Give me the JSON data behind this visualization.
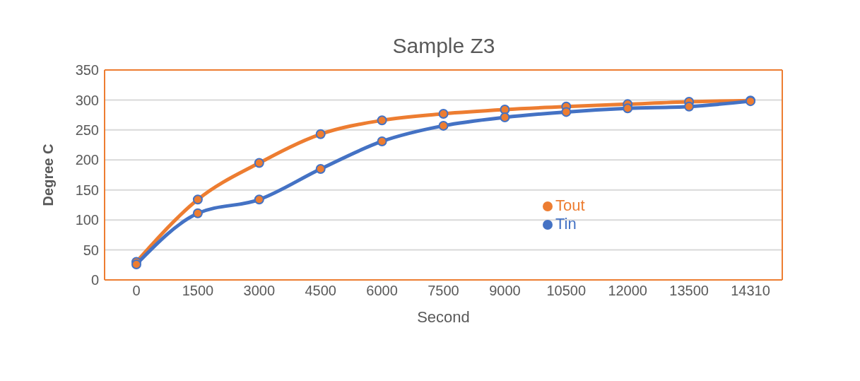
{
  "chart_data": {
    "type": "line",
    "title": "Sample Z3",
    "xlabel": "Second",
    "ylabel": "Degree C",
    "categories": [
      "0",
      "1500",
      "3000",
      "4500",
      "6000",
      "7500",
      "9000",
      "10500",
      "12000",
      "13500",
      "14310"
    ],
    "series": [
      {
        "name": "Tout",
        "color": "#ed7d31",
        "values": [
          30,
          134,
          195,
          243,
          266,
          277,
          284,
          289,
          293,
          297,
          299
        ]
      },
      {
        "name": "Tin",
        "color": "#4472c4",
        "values": [
          26,
          111,
          134,
          185,
          231,
          257,
          271,
          280,
          286,
          289,
          298
        ]
      }
    ],
    "ylim": [
      0,
      350
    ],
    "yticks": [
      0,
      50,
      100,
      150,
      200,
      250,
      300,
      350
    ],
    "grid": "y",
    "legend": "right",
    "marker": "circle"
  }
}
